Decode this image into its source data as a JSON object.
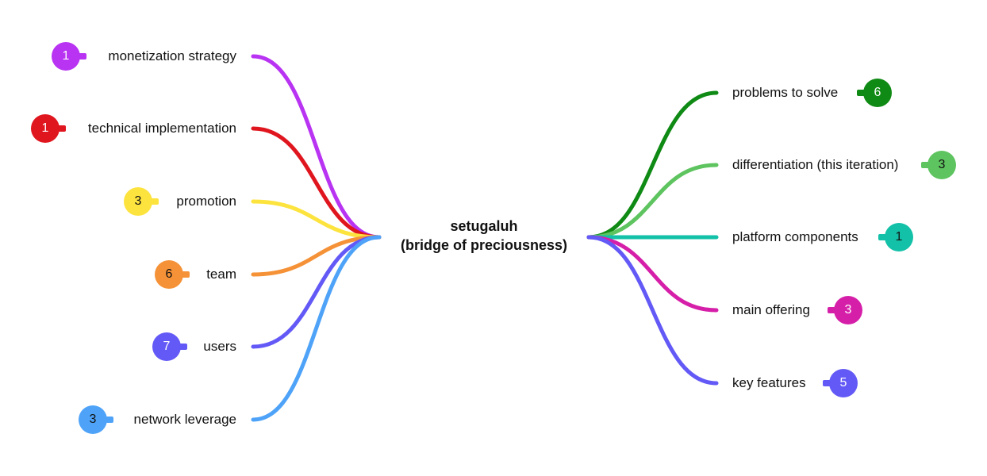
{
  "central_topic": {
    "line1": "setugaluh",
    "line2": "(bridge of preciousness)"
  },
  "left_branches": [
    {
      "label": "monetization strategy",
      "count": "1",
      "color": "#b833f2",
      "text_color": "#ffffff"
    },
    {
      "label": "technical implementation",
      "count": "1",
      "color": "#e0161f",
      "text_color": "#ffffff"
    },
    {
      "label": "promotion",
      "count": "3",
      "color": "#fde33d",
      "text_color": "#111111"
    },
    {
      "label": "team",
      "count": "6",
      "color": "#f59237",
      "text_color": "#111111"
    },
    {
      "label": "users",
      "count": "7",
      "color": "#6359f6",
      "text_color": "#ffffff"
    },
    {
      "label": "network leverage",
      "count": "3",
      "color": "#4ea3f8",
      "text_color": "#111111"
    }
  ],
  "right_branches": [
    {
      "label": "problems to solve",
      "count": "6",
      "color": "#0f8a14",
      "text_color": "#ffffff"
    },
    {
      "label": "differentiation (this iteration)",
      "count": "3",
      "color": "#5ec45f",
      "text_color": "#111111"
    },
    {
      "label": "platform components",
      "count": "1",
      "color": "#13c1a8",
      "text_color": "#111111"
    },
    {
      "label": "main offering",
      "count": "3",
      "color": "#d61fa9",
      "text_color": "#ffffff"
    },
    {
      "label": "key features",
      "count": "5",
      "color": "#6359f6",
      "text_color": "#ffffff"
    }
  ]
}
